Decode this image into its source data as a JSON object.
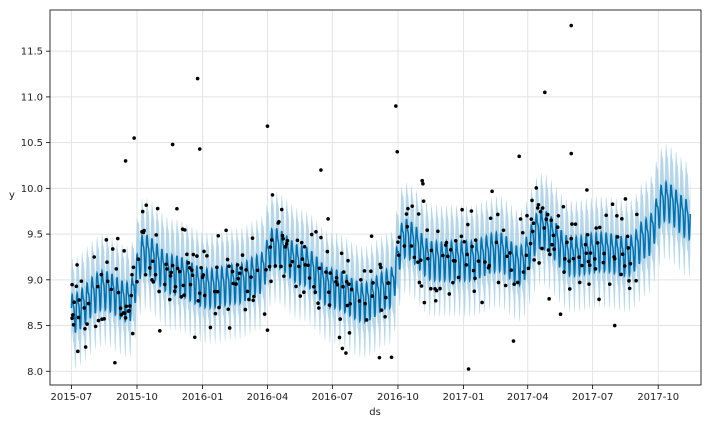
{
  "chart_data": {
    "type": "line",
    "xlabel": "ds",
    "ylabel": "y",
    "xlim": [
      "2015-06-01",
      "2017-11-30"
    ],
    "ylim": [
      7.85,
      11.95
    ],
    "grid": true,
    "xticks": [
      "2015-07",
      "2015-10",
      "2016-01",
      "2016-04",
      "2016-07",
      "2016-10",
      "2017-01",
      "2017-04",
      "2017-07",
      "2017-10"
    ],
    "yticks": [
      "8.0",
      "8.5",
      "9.0",
      "9.5",
      "10.0",
      "10.5",
      "11.0",
      "11.5"
    ],
    "colors": {
      "forecast": "#0072B2",
      "band": "#9ecae1",
      "points": "#000000"
    },
    "forecast_trend": [
      {
        "x": "2015-07-01",
        "y": 8.72
      },
      {
        "x": "2015-08-15",
        "y": 8.98
      },
      {
        "x": "2015-09-20",
        "y": 8.85
      },
      {
        "x": "2015-10-10",
        "y": 9.38
      },
      {
        "x": "2015-11-20",
        "y": 9.15
      },
      {
        "x": "2016-01-10",
        "y": 9.0
      },
      {
        "x": "2016-02-20",
        "y": 9.05
      },
      {
        "x": "2016-03-20",
        "y": 9.15
      },
      {
        "x": "2016-04-10",
        "y": 9.45
      },
      {
        "x": "2016-05-20",
        "y": 9.25
      },
      {
        "x": "2016-07-01",
        "y": 9.0
      },
      {
        "x": "2016-08-15",
        "y": 8.85
      },
      {
        "x": "2016-09-20",
        "y": 9.0
      },
      {
        "x": "2016-10-10",
        "y": 9.55
      },
      {
        "x": "2016-11-20",
        "y": 9.3
      },
      {
        "x": "2017-01-10",
        "y": 9.3
      },
      {
        "x": "2017-02-20",
        "y": 9.4
      },
      {
        "x": "2017-03-20",
        "y": 9.25
      },
      {
        "x": "2017-04-20",
        "y": 9.65
      },
      {
        "x": "2017-06-01",
        "y": 9.35
      },
      {
        "x": "2017-07-15",
        "y": 9.4
      },
      {
        "x": "2017-08-20",
        "y": 9.35
      },
      {
        "x": "2017-09-15",
        "y": 9.55
      },
      {
        "x": "2017-10-10",
        "y": 9.95
      },
      {
        "x": "2017-11-15",
        "y": 9.75
      }
    ],
    "weekly_amplitude": 0.2,
    "uncertainty_halfwidth": 0.4,
    "observations_end": "2017-09-01",
    "forecast_end": "2017-11-15",
    "outliers": [
      {
        "x": "2015-09-27",
        "y": 10.55
      },
      {
        "x": "2015-09-15",
        "y": 10.3
      },
      {
        "x": "2015-11-20",
        "y": 10.48
      },
      {
        "x": "2015-12-25",
        "y": 11.2
      },
      {
        "x": "2015-12-28",
        "y": 10.43
      },
      {
        "x": "2016-04-01",
        "y": 10.68
      },
      {
        "x": "2016-09-28",
        "y": 10.9
      },
      {
        "x": "2016-09-30",
        "y": 10.4
      },
      {
        "x": "2017-04-25",
        "y": 11.05
      },
      {
        "x": "2017-06-01",
        "y": 11.78
      },
      {
        "x": "2017-06-01",
        "y": 10.38
      },
      {
        "x": "2016-07-20",
        "y": 8.2
      },
      {
        "x": "2016-07-15",
        "y": 8.25
      },
      {
        "x": "2015-07-02",
        "y": 8.58
      },
      {
        "x": "2016-04-01",
        "y": 8.45
      },
      {
        "x": "2017-08-01",
        "y": 8.5
      },
      {
        "x": "2016-11-05",
        "y": 10.05
      },
      {
        "x": "2017-03-20",
        "y": 10.35
      },
      {
        "x": "2016-06-15",
        "y": 10.2
      }
    ]
  }
}
